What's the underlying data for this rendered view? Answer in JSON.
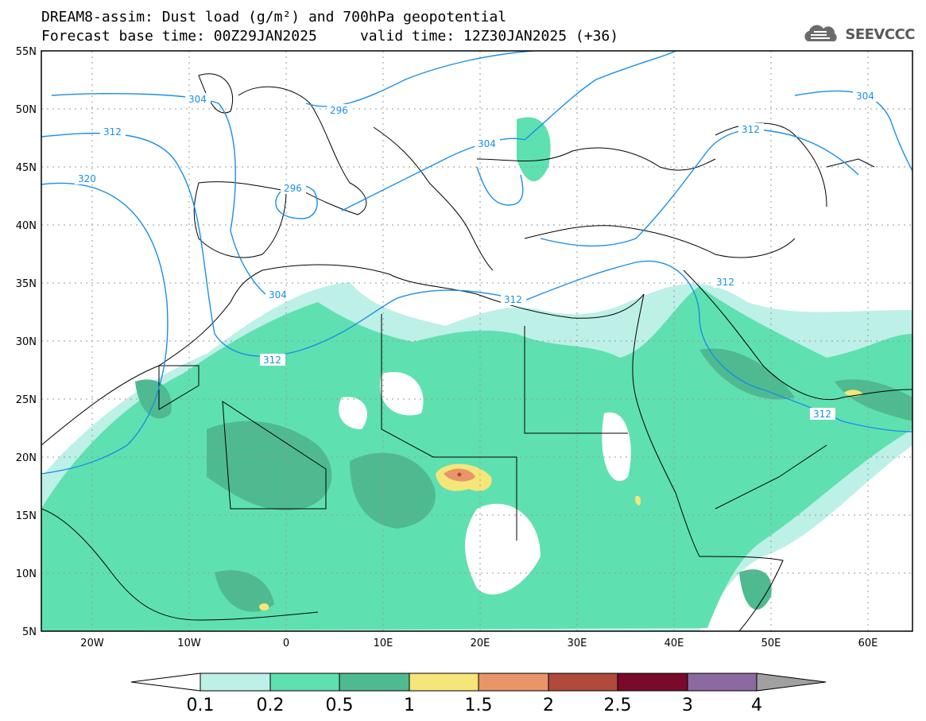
{
  "title": {
    "line1": "DREAM8-assim: Dust load (g/m²) and 700hPa geopotential",
    "line2": "Forecast base time: 00Z29JAN2025     valid time: 12Z30JAN2025 (+36)"
  },
  "brand": {
    "name": "SEEVCCC",
    "icon": "cloud-icon"
  },
  "axes": {
    "lat_labels": [
      "55N",
      "50N",
      "45N",
      "40N",
      "35N",
      "30N",
      "25N",
      "20N",
      "15N",
      "10N",
      "5N"
    ],
    "lon_labels": [
      "20W",
      "10W",
      "0",
      "10E",
      "20E",
      "30E",
      "40E",
      "50E",
      "60E"
    ]
  },
  "contour_labels": [
    "304",
    "296",
    "312",
    "320",
    "296",
    "304",
    "304",
    "312",
    "312",
    "312",
    "312",
    "304",
    "312"
  ],
  "colorbar": {
    "ticks": [
      "0.1",
      "0.2",
      "0.5",
      "1",
      "1.5",
      "2",
      "2.5",
      "3",
      "4"
    ],
    "colors": [
      "#ffffff",
      "#bdf0e6",
      "#5fe0b0",
      "#4fba90",
      "#f5e67a",
      "#e8956a",
      "#b04a3a",
      "#7a0a2a",
      "#8a6aa0",
      "#a0a0a0"
    ]
  },
  "colors": {
    "contour": "#1a8fe6",
    "border": "#000000",
    "grid": "#999999"
  },
  "chart_data": {
    "type": "heatmap",
    "title": "DREAM8-assim: Dust load (g/m²) and 700hPa geopotential",
    "lat_range": [
      5,
      55
    ],
    "lon_range": [
      -25,
      65
    ],
    "dust_levels": [
      0.1,
      0.2,
      0.5,
      1,
      1.5,
      2,
      2.5,
      3,
      4
    ],
    "geopotential_contours": [
      296,
      304,
      312,
      320
    ]
  }
}
